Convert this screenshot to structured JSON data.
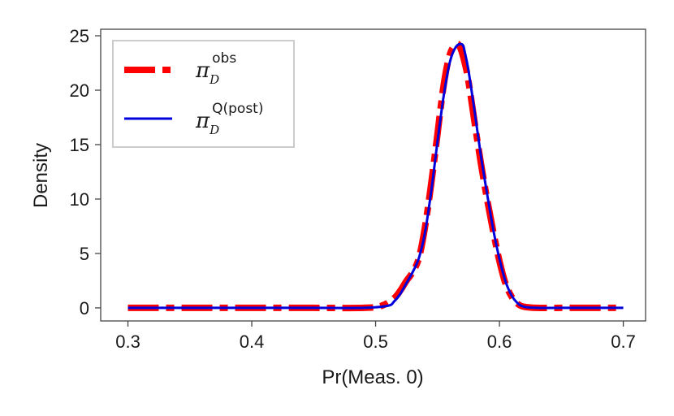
{
  "chart_data": {
    "type": "line",
    "title": "",
    "xlabel": "Pr(Meas. 0)",
    "ylabel": "Density",
    "xlim": [
      0.278,
      0.718
    ],
    "ylim": [
      -1.2,
      25.6
    ],
    "x_ticks": [
      0.3,
      0.4,
      0.5,
      0.6,
      0.7
    ],
    "x_tick_labels": [
      "0.3",
      "0.4",
      "0.5",
      "0.6",
      "0.7"
    ],
    "y_ticks": [
      0,
      5,
      10,
      15,
      20,
      25
    ],
    "y_tick_labels": [
      "0",
      "5",
      "10",
      "15",
      "20",
      "25"
    ],
    "grid": false,
    "legend_position": "top-left",
    "series": [
      {
        "name": "π_D^obs",
        "legend_main": "π",
        "legend_sub": "D",
        "legend_sup": "obs",
        "color": "#ff0000",
        "style": "dashed",
        "x": [
          0.3,
          0.35,
          0.4,
          0.45,
          0.49,
          0.505,
          0.515,
          0.52,
          0.525,
          0.53,
          0.535,
          0.54,
          0.545,
          0.55,
          0.555,
          0.56,
          0.565,
          0.568,
          0.572,
          0.575,
          0.58,
          0.585,
          0.59,
          0.595,
          0.6,
          0.605,
          0.61,
          0.615,
          0.62,
          0.63,
          0.65,
          0.7
        ],
        "values": [
          0,
          0,
          0,
          0,
          0,
          0.2,
          0.9,
          1.6,
          2.5,
          3.3,
          4.6,
          7.5,
          11.5,
          16.0,
          20.5,
          23.3,
          24.2,
          24.0,
          22.5,
          20.8,
          17.0,
          13.3,
          10.0,
          7.0,
          4.3,
          2.2,
          1.0,
          0.35,
          0.1,
          0,
          0,
          0
        ]
      },
      {
        "name": "π_D^Q(post)",
        "legend_main": "π",
        "legend_sub": "D",
        "legend_sup": "Q(post)",
        "color": "#0000dd",
        "style": "solid",
        "x": [
          0.3,
          0.35,
          0.4,
          0.45,
          0.49,
          0.51,
          0.515,
          0.52,
          0.525,
          0.53,
          0.535,
          0.54,
          0.545,
          0.55,
          0.555,
          0.56,
          0.565,
          0.57,
          0.572,
          0.575,
          0.58,
          0.585,
          0.59,
          0.595,
          0.6,
          0.605,
          0.61,
          0.615,
          0.62,
          0.63,
          0.65,
          0.7
        ],
        "values": [
          0,
          0,
          0,
          0,
          0,
          0.2,
          0.6,
          1.3,
          2.3,
          3.3,
          4.6,
          7.0,
          10.8,
          15.3,
          19.5,
          22.6,
          24.0,
          24.2,
          23.5,
          21.8,
          18.0,
          14.0,
          10.5,
          7.2,
          4.5,
          2.4,
          1.1,
          0.4,
          0.1,
          0,
          0,
          0
        ]
      }
    ]
  }
}
